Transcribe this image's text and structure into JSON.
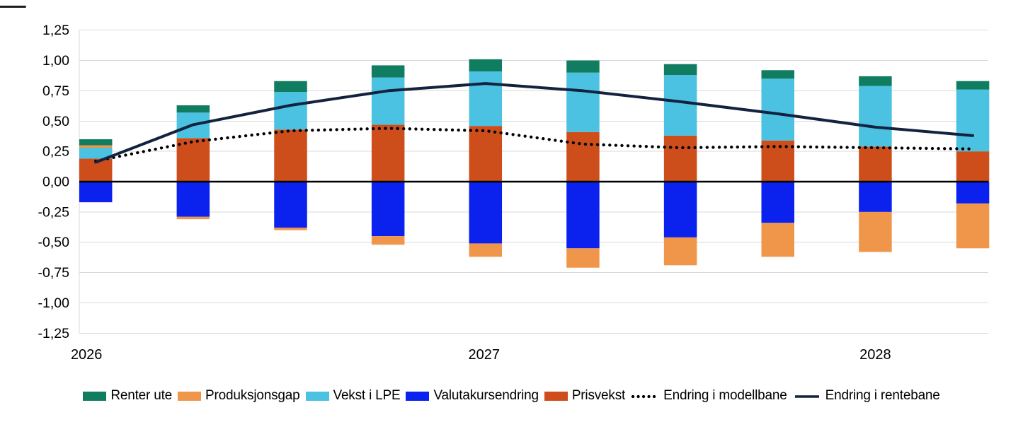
{
  "chart_data": {
    "type": "bar",
    "subtype": "stacked-bars-with-lines",
    "title": "",
    "n_points": 10,
    "x_tick_labels": [
      {
        "label": "2026",
        "bar_index": 0
      },
      {
        "label": "2027",
        "bar_index": 4
      },
      {
        "label": "2028",
        "bar_index": 8
      }
    ],
    "y_axis": {
      "min": -1.25,
      "max": 1.25,
      "step": 0.25,
      "tick_labels": [
        "1,25",
        "1,00",
        "0,75",
        "0,50",
        "0,25",
        "0,00",
        "-0,25",
        "-0,50",
        "-0,75",
        "-1,00",
        "-1,25"
      ]
    },
    "grid": true,
    "legend_position": "bottom",
    "bar_series": [
      {
        "name": "Renter ute",
        "color": "#107C60",
        "values": [
          0.05,
          0.06,
          0.09,
          0.1,
          0.1,
          0.1,
          0.09,
          0.07,
          0.08,
          0.07
        ]
      },
      {
        "name": "Produksjonsgap",
        "color": "#F0964B",
        "values": [
          0.02,
          -0.02,
          -0.02,
          -0.07,
          -0.11,
          -0.16,
          -0.23,
          -0.28,
          -0.33,
          -0.37
        ]
      },
      {
        "name": "Vekst i LPE",
        "color": "#4BC2E2",
        "values": [
          0.09,
          0.21,
          0.31,
          0.39,
          0.45,
          0.49,
          0.5,
          0.51,
          0.5,
          0.51
        ]
      },
      {
        "name": "Valutakursendring",
        "color": "#0B21EE",
        "values": [
          -0.17,
          -0.29,
          -0.38,
          -0.45,
          -0.51,
          -0.55,
          -0.46,
          -0.34,
          -0.25,
          -0.18
        ]
      },
      {
        "name": "Prisvekst",
        "color": "#CE4E1B",
        "values": [
          0.19,
          0.36,
          0.43,
          0.47,
          0.46,
          0.41,
          0.38,
          0.34,
          0.29,
          0.25
        ]
      }
    ],
    "line_series": [
      {
        "name": "Endring i modellbane",
        "style": "dotted",
        "color": "#000000",
        "values": [
          0.17,
          0.33,
          0.42,
          0.44,
          0.42,
          0.31,
          0.28,
          0.29,
          0.28,
          0.27
        ]
      },
      {
        "name": "Endring i rentebane",
        "style": "solid",
        "color": "#13233F",
        "values": [
          0.16,
          0.47,
          0.63,
          0.75,
          0.81,
          0.75,
          0.66,
          0.56,
          0.45,
          0.38
        ]
      }
    ],
    "stack_order_positive": [
      "Prisvekst",
      "Vekst i LPE",
      "Produksjonsgap",
      "Renter ute"
    ],
    "stack_order_negative": [
      "Valutakursendring",
      "Produksjonsgap"
    ],
    "axis_colors": {
      "gridline": "#D9D9D9",
      "zero_line": "#000000",
      "text": "#000000"
    }
  }
}
